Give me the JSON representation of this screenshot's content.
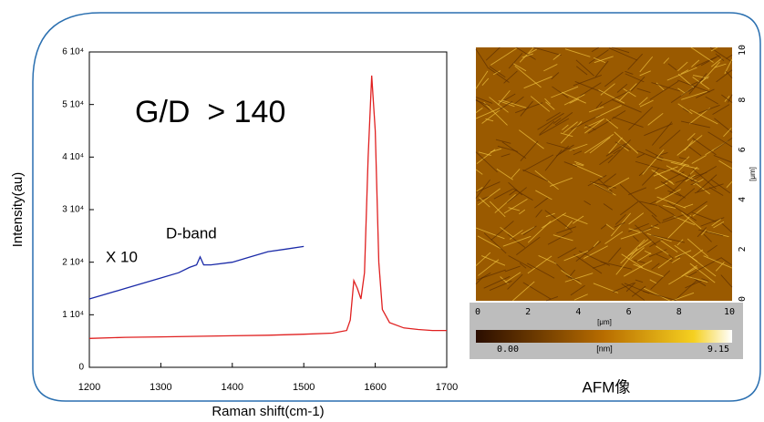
{
  "chart_data": {
    "type": "line",
    "x_label": "Raman shift(cm-1)",
    "y_label": "Intensity(au)",
    "xlim": [
      1200,
      1700
    ],
    "xticks": [
      1200,
      1300,
      1400,
      1500,
      1600,
      1700
    ],
    "ylim": [
      0,
      60000
    ],
    "yticks": [
      0,
      {
        "value": 10000,
        "label": "1 10⁴"
      },
      {
        "value": 20000,
        "label": "2 10⁴"
      },
      {
        "value": 30000,
        "label": "3 10⁴"
      },
      {
        "value": 40000,
        "label": "4 10⁴"
      },
      {
        "value": 50000,
        "label": "5 10⁴"
      },
      {
        "value": 60000,
        "label": "6 10⁴"
      }
    ],
    "annotations": [
      "G/D  > 140",
      "X 10",
      "D-band"
    ],
    "series": [
      {
        "color": "#e02020",
        "x": [
          1200,
          1250,
          1300,
          1350,
          1400,
          1450,
          1500,
          1540,
          1560,
          1565,
          1570,
          1575,
          1580,
          1585,
          1590,
          1595,
          1600,
          1605,
          1610,
          1620,
          1640,
          1660,
          1680,
          1700
        ],
        "values": [
          5500,
          5700,
          5800,
          5900,
          6000,
          6100,
          6300,
          6500,
          7000,
          9000,
          16500,
          15000,
          13000,
          18000,
          40000,
          55500,
          45000,
          20000,
          11000,
          8500,
          7500,
          7200,
          7000,
          7000
        ]
      },
      {
        "color": "#1a2aa8",
        "x": [
          1200,
          1225,
          1250,
          1275,
          1300,
          1325,
          1340,
          1350,
          1355,
          1360,
          1370,
          1400,
          1425,
          1450,
          1475,
          1500
        ],
        "values": [
          13000,
          14000,
          15000,
          16000,
          17000,
          18000,
          19000,
          19500,
          21000,
          19500,
          19500,
          20000,
          21000,
          22000,
          22500,
          23000
        ]
      }
    ]
  },
  "afm": {
    "caption": "AFM像",
    "x_ticks": [
      "0",
      "2",
      "4",
      "6",
      "8",
      "10"
    ],
    "x_unit": "[μm]",
    "y_ticks": [
      "0",
      "2",
      "4",
      "6",
      "8",
      "10"
    ],
    "y_unit": "[μm]",
    "colorbar": {
      "min": "0.00",
      "unit": "[nm]",
      "max": "9.15"
    }
  }
}
